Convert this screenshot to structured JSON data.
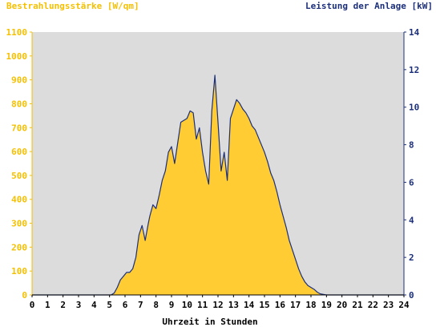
{
  "chart_data": {
    "type": "area",
    "title_left": "Bestrahlungsstärke [W/qm]",
    "title_right": "Leistung der Anlage [kW]",
    "xlabel": "Uhrzeit in Stunden",
    "xlim": [
      0,
      24
    ],
    "ylim_left": [
      0,
      1100
    ],
    "ylim_right": [
      0,
      14
    ],
    "grid": false,
    "x_ticks": [
      "0",
      "1",
      "2",
      "3",
      "4",
      "5",
      "6",
      "7",
      "8",
      "9",
      "10",
      "11",
      "12",
      "13",
      "14",
      "15",
      "16",
      "17",
      "18",
      "19",
      "20",
      "21",
      "22",
      "23",
      "24"
    ],
    "y_left_ticks": [
      "0",
      "100",
      "200",
      "300",
      "400",
      "500",
      "600",
      "700",
      "800",
      "900",
      "1000",
      "1100"
    ],
    "y_right_ticks": [
      "0",
      "2",
      "4",
      "6",
      "8",
      "10",
      "12",
      "14"
    ],
    "colors": {
      "plot_bg": "#dcdcdc",
      "irradiance_fill": "#ffcc33",
      "power_line": "#1c2f7a",
      "left_axis_text": "#f5c000",
      "right_axis_text": "#1c2f7a"
    },
    "series": [
      {
        "name": "Bestrahlungsstärke [W/qm]",
        "axis": "left",
        "style": "area",
        "x": [
          0,
          5.1,
          5.3,
          5.5,
          5.7,
          5.9,
          6.1,
          6.3,
          6.5,
          6.7,
          6.9,
          7.1,
          7.3,
          7.5,
          7.6,
          7.8,
          8.0,
          8.2,
          8.4,
          8.6,
          8.8,
          9.0,
          9.2,
          9.4,
          9.6,
          9.8,
          10.0,
          10.2,
          10.4,
          10.6,
          10.8,
          11.0,
          11.2,
          11.4,
          11.6,
          11.8,
          12.0,
          12.2,
          12.4,
          12.6,
          12.8,
          13.0,
          13.2,
          13.4,
          13.6,
          13.8,
          14.0,
          14.2,
          14.4,
          14.6,
          14.8,
          15.0,
          15.2,
          15.4,
          15.6,
          15.8,
          16.0,
          16.2,
          16.4,
          16.6,
          16.8,
          17.0,
          17.2,
          17.4,
          17.6,
          17.8,
          18.0,
          18.2,
          18.4,
          18.6,
          18.8,
          19.0,
          19.2,
          19.4,
          19.6,
          19.8,
          20.0,
          24
        ],
        "y": [
          0,
          0,
          5,
          30,
          60,
          80,
          90,
          95,
          110,
          160,
          250,
          290,
          230,
          300,
          330,
          380,
          360,
          420,
          480,
          520,
          600,
          620,
          550,
          640,
          720,
          730,
          740,
          770,
          760,
          650,
          700,
          600,
          520,
          460,
          770,
          920,
          720,
          520,
          600,
          480,
          740,
          780,
          820,
          800,
          780,
          760,
          740,
          710,
          690,
          660,
          630,
          600,
          560,
          510,
          480,
          430,
          380,
          330,
          280,
          230,
          190,
          150,
          110,
          80,
          55,
          40,
          30,
          20,
          10,
          5,
          2,
          0,
          0,
          0,
          0,
          0,
          0,
          0
        ]
      },
      {
        "name": "Leistung der Anlage [kW]",
        "axis": "right",
        "style": "line",
        "x": [
          0,
          5.1,
          5.3,
          5.5,
          5.7,
          5.9,
          6.1,
          6.3,
          6.5,
          6.7,
          6.9,
          7.1,
          7.3,
          7.5,
          7.6,
          7.8,
          8.0,
          8.2,
          8.4,
          8.6,
          8.8,
          9.0,
          9.2,
          9.4,
          9.6,
          9.8,
          10.0,
          10.2,
          10.4,
          10.6,
          10.8,
          11.0,
          11.2,
          11.4,
          11.6,
          11.8,
          12.0,
          12.2,
          12.4,
          12.6,
          12.8,
          13.0,
          13.2,
          13.4,
          13.6,
          13.8,
          14.0,
          14.2,
          14.4,
          14.6,
          14.8,
          15.0,
          15.2,
          15.4,
          15.6,
          15.8,
          16.0,
          16.2,
          16.4,
          16.6,
          16.8,
          17.0,
          17.2,
          17.4,
          17.6,
          17.8,
          18.0,
          18.2,
          18.4,
          18.6,
          18.8,
          19.0,
          19.2,
          19.4,
          19.6,
          19.8,
          20.0,
          24
        ],
        "y": [
          0,
          0,
          0.1,
          0.4,
          0.8,
          1.0,
          1.2,
          1.2,
          1.4,
          2.0,
          3.2,
          3.7,
          2.9,
          3.8,
          4.2,
          4.8,
          4.6,
          5.3,
          6.1,
          6.6,
          7.6,
          7.9,
          7.0,
          8.1,
          9.2,
          9.3,
          9.4,
          9.8,
          9.7,
          8.3,
          8.9,
          7.6,
          6.6,
          5.9,
          9.8,
          11.7,
          9.2,
          6.6,
          7.6,
          6.1,
          9.4,
          9.9,
          10.4,
          10.2,
          9.9,
          9.7,
          9.4,
          9.0,
          8.8,
          8.4,
          8.0,
          7.6,
          7.1,
          6.5,
          6.1,
          5.5,
          4.8,
          4.2,
          3.6,
          2.9,
          2.4,
          1.9,
          1.4,
          1.0,
          0.7,
          0.5,
          0.4,
          0.3,
          0.15,
          0.06,
          0.03,
          0,
          0,
          0,
          0,
          0,
          0,
          0
        ]
      }
    ]
  }
}
